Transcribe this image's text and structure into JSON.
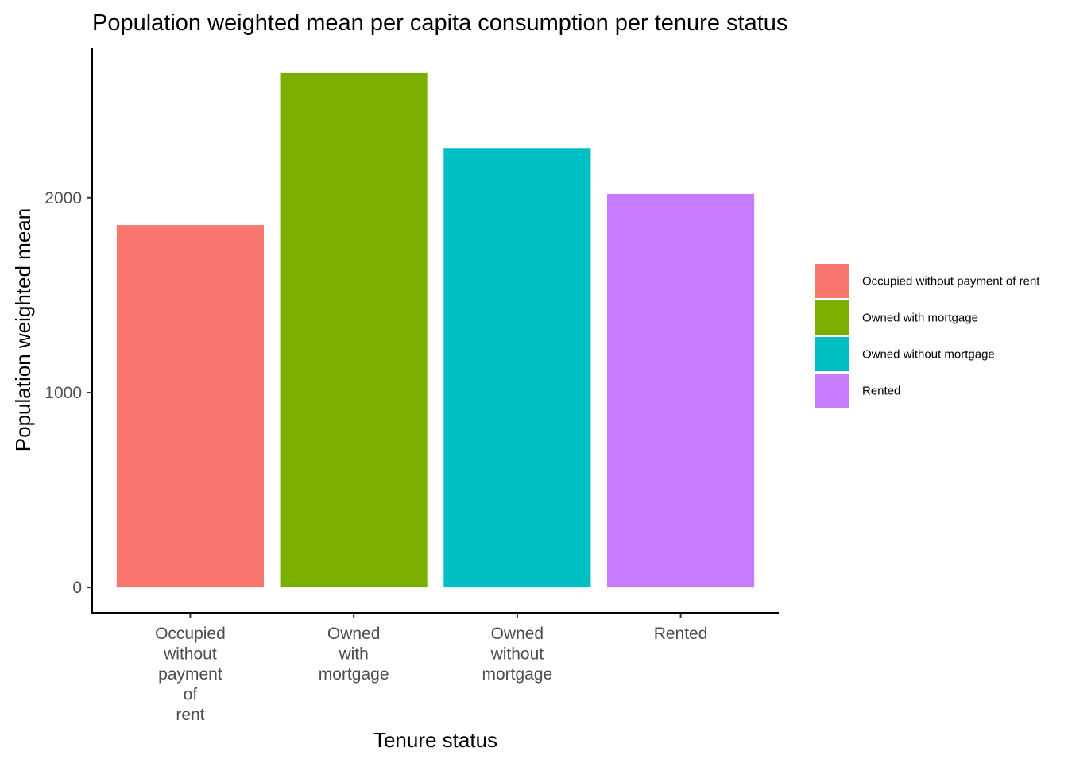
{
  "chart_data": {
    "type": "bar",
    "title": "Population weighted mean per capita consumption per tenure status",
    "xlabel": "Tenure status",
    "ylabel": "Population weighted mean",
    "categories": [
      "Occupied without payment of rent",
      "Owned with mortgage",
      "Owned without mortgage",
      "Rented"
    ],
    "category_label_lines": [
      [
        "Occupied",
        "without",
        "payment",
        "of",
        "rent"
      ],
      [
        "Owned",
        "with",
        "mortgage"
      ],
      [
        "Owned",
        "without",
        "mortgage"
      ],
      [
        "Rented"
      ]
    ],
    "values": [
      1860,
      2640,
      2255,
      2020
    ],
    "colors": [
      "#F8766D",
      "#7CAE00",
      "#00BFC4",
      "#C77CFF"
    ],
    "yticks": [
      0,
      1000,
      2000
    ],
    "ylim": [
      -130,
      2770
    ],
    "grid": false,
    "legend": {
      "position": "right",
      "entries": [
        "Occupied without payment of rent",
        "Owned with mortgage",
        "Owned without mortgage",
        "Rented"
      ]
    }
  }
}
